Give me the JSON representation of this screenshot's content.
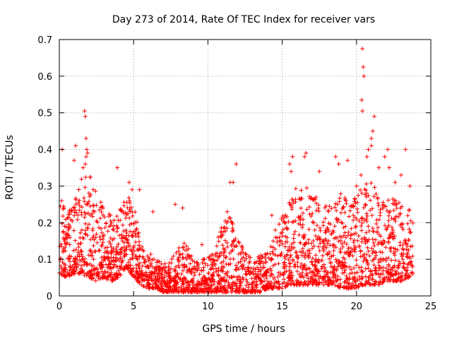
{
  "chart_data": {
    "type": "scatter",
    "title": "Day 273 of 2014, Rate Of TEC Index for receiver vars",
    "xlabel": "GPS time / hours",
    "ylabel": "ROTI / TECUs",
    "xlim": [
      0,
      25
    ],
    "ylim": [
      0,
      0.7
    ],
    "xticks": [
      0,
      5,
      10,
      15,
      20,
      25
    ],
    "yticks": [
      0,
      0.1,
      0.2,
      0.3,
      0.4,
      0.5,
      0.6,
      0.7
    ],
    "grid": true,
    "marker": "+",
    "color": "#ff0000",
    "x_range": [
      0,
      23.8
    ],
    "profile_hours": [
      0,
      0.5,
      1,
      1.5,
      2,
      2.5,
      3,
      3.5,
      4,
      4.5,
      5,
      5.5,
      6,
      6.5,
      7,
      7.5,
      8,
      8.5,
      9,
      9.5,
      10,
      10.5,
      11,
      11.5,
      12,
      12.5,
      13,
      13.5,
      14,
      14.5,
      15,
      15.5,
      16,
      16.5,
      17,
      17.5,
      18,
      18.5,
      19,
      19.5,
      20,
      20.5,
      21,
      21.5,
      22,
      22.5,
      23,
      23.5,
      23.8
    ],
    "profile_low": [
      0.06,
      0.05,
      0.06,
      0.06,
      0.05,
      0.04,
      0.05,
      0.04,
      0.05,
      0.08,
      0.05,
      0.03,
      0.02,
      0.02,
      0.01,
      0.01,
      0.01,
      0.01,
      0.01,
      0.01,
      0.01,
      0.01,
      0.01,
      0.01,
      0.01,
      0.01,
      0.01,
      0.01,
      0.02,
      0.02,
      0.02,
      0.03,
      0.03,
      0.03,
      0.03,
      0.03,
      0.03,
      0.03,
      0.02,
      0.02,
      0.02,
      0.03,
      0.03,
      0.03,
      0.04,
      0.04,
      0.04,
      0.05,
      0.06
    ],
    "profile_high": [
      0.26,
      0.24,
      0.25,
      0.33,
      0.34,
      0.28,
      0.24,
      0.22,
      0.23,
      0.28,
      0.25,
      0.15,
      0.12,
      0.1,
      0.09,
      0.1,
      0.13,
      0.15,
      0.1,
      0.09,
      0.12,
      0.14,
      0.2,
      0.22,
      0.17,
      0.12,
      0.1,
      0.11,
      0.12,
      0.18,
      0.22,
      0.28,
      0.3,
      0.31,
      0.27,
      0.28,
      0.25,
      0.27,
      0.3,
      0.24,
      0.28,
      0.3,
      0.32,
      0.27,
      0.26,
      0.27,
      0.25,
      0.24,
      0.23
    ],
    "outliers": [
      {
        "x": 0.2,
        "y": 0.4
      },
      {
        "x": 0.15,
        "y": 0.26
      },
      {
        "x": 1.0,
        "y": 0.37
      },
      {
        "x": 1.1,
        "y": 0.41
      },
      {
        "x": 1.7,
        "y": 0.505
      },
      {
        "x": 1.75,
        "y": 0.49
      },
      {
        "x": 1.8,
        "y": 0.43
      },
      {
        "x": 1.85,
        "y": 0.4
      },
      {
        "x": 1.9,
        "y": 0.39
      },
      {
        "x": 1.8,
        "y": 0.38
      },
      {
        "x": 1.75,
        "y": 0.36
      },
      {
        "x": 1.6,
        "y": 0.35
      },
      {
        "x": 3.9,
        "y": 0.35
      },
      {
        "x": 4.7,
        "y": 0.31
      },
      {
        "x": 4.9,
        "y": 0.29
      },
      {
        "x": 5.4,
        "y": 0.29
      },
      {
        "x": 6.3,
        "y": 0.23
      },
      {
        "x": 7.8,
        "y": 0.25
      },
      {
        "x": 8.3,
        "y": 0.24
      },
      {
        "x": 9.6,
        "y": 0.14
      },
      {
        "x": 11.5,
        "y": 0.31
      },
      {
        "x": 11.7,
        "y": 0.31
      },
      {
        "x": 11.9,
        "y": 0.36
      },
      {
        "x": 11.3,
        "y": 0.23
      },
      {
        "x": 14.3,
        "y": 0.22
      },
      {
        "x": 15.5,
        "y": 0.36
      },
      {
        "x": 15.6,
        "y": 0.34
      },
      {
        "x": 15.7,
        "y": 0.38
      },
      {
        "x": 16.5,
        "y": 0.38
      },
      {
        "x": 16.6,
        "y": 0.39
      },
      {
        "x": 17.5,
        "y": 0.34
      },
      {
        "x": 18.6,
        "y": 0.38
      },
      {
        "x": 18.8,
        "y": 0.36
      },
      {
        "x": 19.4,
        "y": 0.37
      },
      {
        "x": 20.0,
        "y": 0.3
      },
      {
        "x": 20.4,
        "y": 0.675
      },
      {
        "x": 20.45,
        "y": 0.625
      },
      {
        "x": 20.5,
        "y": 0.6
      },
      {
        "x": 20.35,
        "y": 0.535
      },
      {
        "x": 20.4,
        "y": 0.505
      },
      {
        "x": 20.3,
        "y": 0.33
      },
      {
        "x": 20.7,
        "y": 0.38
      },
      {
        "x": 20.8,
        "y": 0.4
      },
      {
        "x": 21.0,
        "y": 0.43
      },
      {
        "x": 21.1,
        "y": 0.45
      },
      {
        "x": 21.2,
        "y": 0.49
      },
      {
        "x": 21.0,
        "y": 0.41
      },
      {
        "x": 21.5,
        "y": 0.35
      },
      {
        "x": 21.9,
        "y": 0.38
      },
      {
        "x": 22.1,
        "y": 0.4
      },
      {
        "x": 22.6,
        "y": 0.31
      },
      {
        "x": 23.0,
        "y": 0.33
      },
      {
        "x": 23.3,
        "y": 0.4
      },
      {
        "x": 23.6,
        "y": 0.3
      },
      {
        "x": 22.2,
        "y": 0.35
      }
    ]
  }
}
